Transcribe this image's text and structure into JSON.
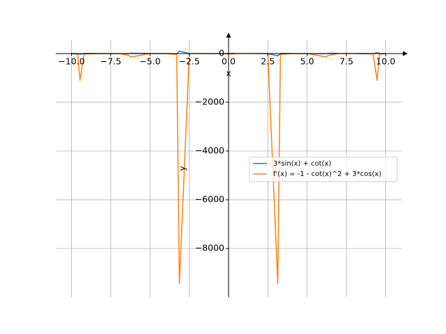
{
  "chart_data": {
    "type": "line",
    "x_label": "x",
    "y_label": "y",
    "x": [
      -10,
      -9.6,
      -9.455,
      -9.2,
      -8,
      -7,
      -6.4,
      -6.2,
      -5,
      -4,
      -3.3,
      -3.1313,
      -2.5,
      -1.5,
      -0.5,
      -0.2,
      0.2,
      0.5,
      1.5,
      2.5,
      3.1313,
      3.3,
      4,
      5,
      6.2,
      6.4,
      7,
      8,
      9.2,
      9.455,
      9.6,
      10
    ],
    "series": [
      {
        "name": "3*sin(x) + cot(x)",
        "color": "#1f77b4",
        "values": [
          0.09,
          -5.1,
          -33,
          3.7,
          -2.82,
          -3.12,
          -8.87,
          12.3,
          3.17,
          1.41,
          -5.79,
          97,
          -0.46,
          -3.06,
          -3.27,
          -5.53,
          5.53,
          3.27,
          3.06,
          0.46,
          -97,
          5.79,
          -1.41,
          -3.17,
          -12.3,
          8.87,
          3.12,
          2.82,
          -3.7,
          33,
          5.1,
          -0.09
        ]
      },
      {
        "name": "f'(x) = -1 - cot(x)^2 + 3*cos(x)",
        "color": "#ff7f0e",
        "values": [
          -5.9,
          -35.9,
          -1100,
          -23,
          -1.46,
          -0.06,
          -70.6,
          -142,
          -0.24,
          -3.7,
          -43,
          -9432,
          -5.2,
          -0.79,
          -1.7,
          -22.4,
          -22.4,
          -1.7,
          -0.79,
          -5.2,
          -9432,
          -43,
          -3.7,
          -0.24,
          -142,
          -70.6,
          -0.06,
          -1.46,
          -23,
          -1100,
          -35.9,
          -5.9
        ]
      }
    ],
    "xlim": [
      -11,
      11
    ],
    "ylim": [
      -10000,
      550
    ],
    "xticks": [
      {
        "value": -10,
        "label": "−10.0"
      },
      {
        "value": -7.5,
        "label": "−7.5"
      },
      {
        "value": -5,
        "label": "−5.0"
      },
      {
        "value": -2.5,
        "label": "−2.5"
      },
      {
        "value": 0,
        "label": "0.0"
      },
      {
        "value": 2.5,
        "label": "2.5"
      },
      {
        "value": 5,
        "label": "5.0"
      },
      {
        "value": 7.5,
        "label": "7.5"
      },
      {
        "value": 10,
        "label": "10.0"
      }
    ],
    "yticks": [
      0,
      {
        "value": -2000,
        "label": "−2000"
      },
      {
        "value": -4000,
        "label": "−4000"
      },
      {
        "value": -6000,
        "label": "−6000"
      },
      {
        "value": -8000,
        "label": "−8000"
      }
    ],
    "grid": true,
    "legend": "right"
  }
}
